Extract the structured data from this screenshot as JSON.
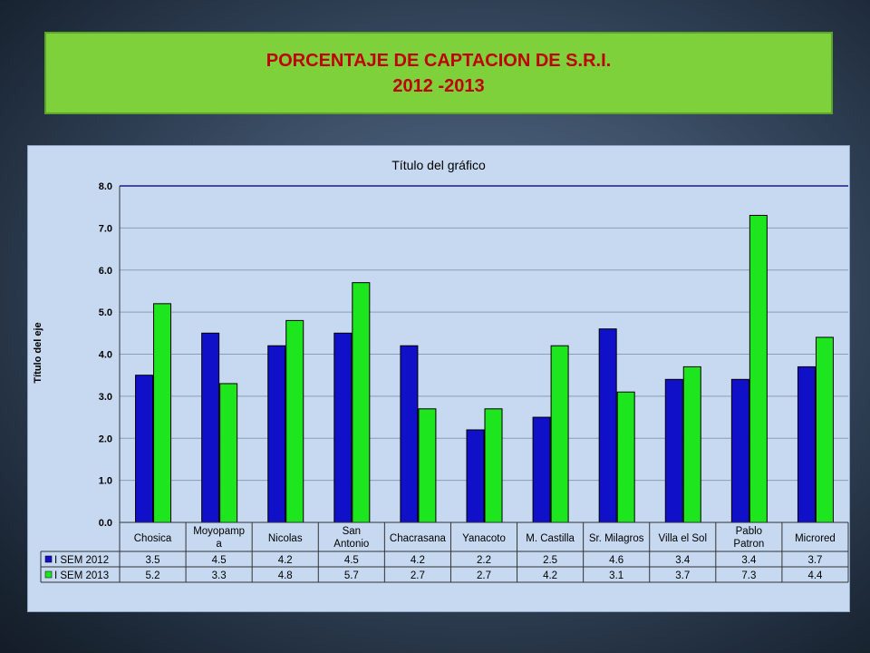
{
  "header": {
    "title_line1": "PORCENTAJE DE CAPTACION DE S.R.I.",
    "title_line2": "2012 -2013"
  },
  "chart_data": {
    "type": "bar",
    "title": "Título del gráfico",
    "ylabel": "Título del eje",
    "xlabel": "",
    "ylim": [
      0,
      8
    ],
    "yticks": [
      "0.0",
      "1.0",
      "2.0",
      "3.0",
      "4.0",
      "5.0",
      "6.0",
      "7.0",
      "8.0"
    ],
    "grid": true,
    "legend": "data-table",
    "categories": [
      [
        "Chosica"
      ],
      [
        "Moyopamp",
        "a"
      ],
      [
        "Nicolas"
      ],
      [
        "San",
        "Antonio"
      ],
      [
        "Chacrasana"
      ],
      [
        "Yanacoto"
      ],
      [
        "M. Castilla"
      ],
      [
        "Sr. Milagros"
      ],
      [
        "Villa el Sol"
      ],
      [
        "Pablo",
        "Patron"
      ],
      [
        "Microred"
      ]
    ],
    "series": [
      {
        "name": "I SEM 2012",
        "color": "#1010c8",
        "values": [
          3.5,
          4.5,
          4.2,
          4.5,
          4.2,
          2.2,
          2.5,
          4.6,
          3.4,
          3.4,
          3.7
        ],
        "labels": [
          "3.5",
          "4.5",
          "4.2",
          "4.5",
          "4.2",
          "2.2",
          "2.5",
          "4.6",
          "3.4",
          "3.4",
          "3.7"
        ]
      },
      {
        "name": "I SEM 2013",
        "color": "#1ee61e",
        "values": [
          5.2,
          3.3,
          4.8,
          5.7,
          2.7,
          2.7,
          4.2,
          3.1,
          3.7,
          7.3,
          4.4
        ],
        "labels": [
          "5.2",
          "3.3",
          "4.8",
          "5.7",
          "2.7",
          "2.7",
          "4.2",
          "3.1",
          "3.7",
          "7.3",
          "4.4"
        ]
      }
    ]
  }
}
